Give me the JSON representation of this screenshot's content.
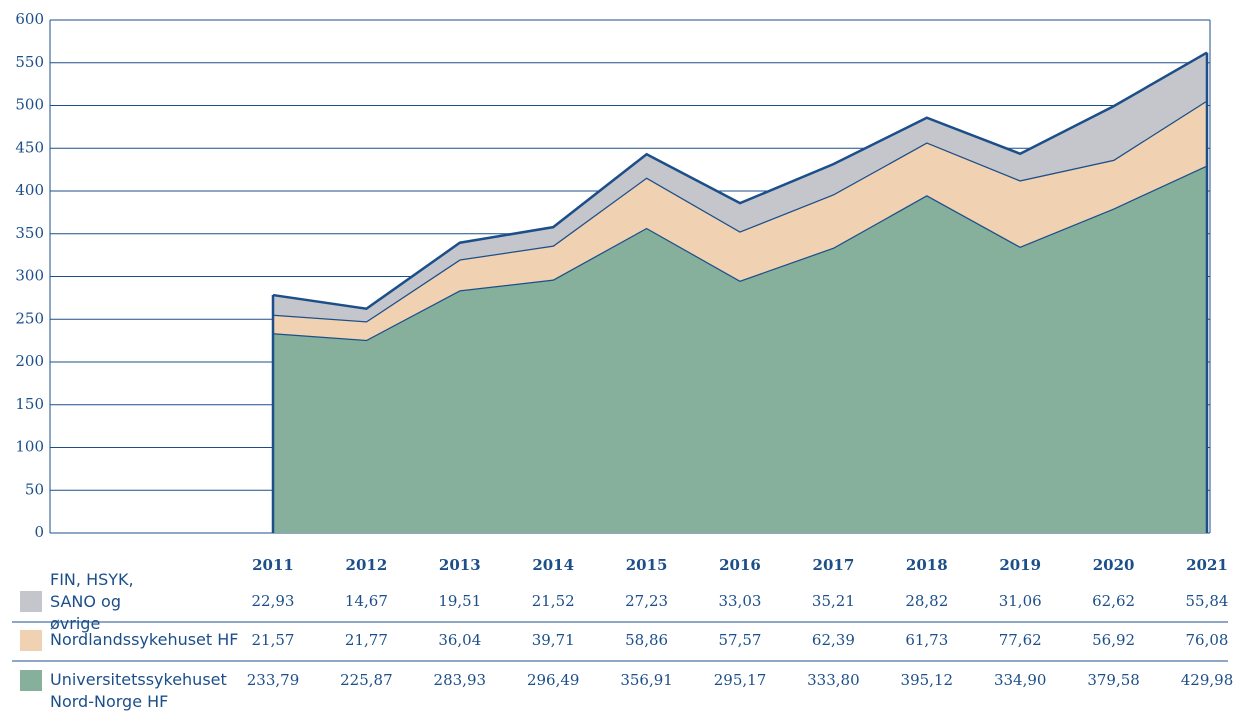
{
  "chart_data": {
    "type": "stacked_area",
    "categories": [
      "2011",
      "2012",
      "2013",
      "2014",
      "2015",
      "2016",
      "2017",
      "2018",
      "2019",
      "2020",
      "2021"
    ],
    "series": [
      {
        "name": "FIN, HSYK, SANO og øvrige",
        "color": "#c4c6cc",
        "values": [
          22.93,
          14.67,
          19.51,
          21.52,
          27.23,
          33.03,
          35.21,
          28.82,
          31.06,
          62.62,
          55.84
        ],
        "value_labels": [
          "22,93",
          "14,67",
          "19,51",
          "21,52",
          "27,23",
          "33,03",
          "35,21",
          "28,82",
          "31,06",
          "62,62",
          "55,84"
        ]
      },
      {
        "name": "Nordlandssykehuset HF",
        "color": "#f0d1b2",
        "values": [
          21.57,
          21.77,
          36.04,
          39.71,
          58.86,
          57.57,
          62.39,
          61.73,
          77.62,
          56.92,
          76.08
        ],
        "value_labels": [
          "21,57",
          "21,77",
          "36,04",
          "39,71",
          "58,86",
          "57,57",
          "62,39",
          "61,73",
          "77,62",
          "56,92",
          "76,08"
        ]
      },
      {
        "name": "Universitetssykehuset Nord-Norge HF",
        "color": "#86b09c",
        "values": [
          233.79,
          225.87,
          283.93,
          296.49,
          356.91,
          295.17,
          333.8,
          395.12,
          334.9,
          379.58,
          429.98
        ],
        "value_labels": [
          "233,79",
          "225,87",
          "283,93",
          "296,49",
          "356,91",
          "295,17",
          "333,80",
          "395,12",
          "334,90",
          "379,58",
          "429,98"
        ]
      }
    ],
    "ylim": [
      0,
      600
    ],
    "yticks": [
      0,
      50,
      100,
      150,
      200,
      250,
      300,
      350,
      400,
      450,
      500,
      550,
      600
    ],
    "grid": true
  }
}
